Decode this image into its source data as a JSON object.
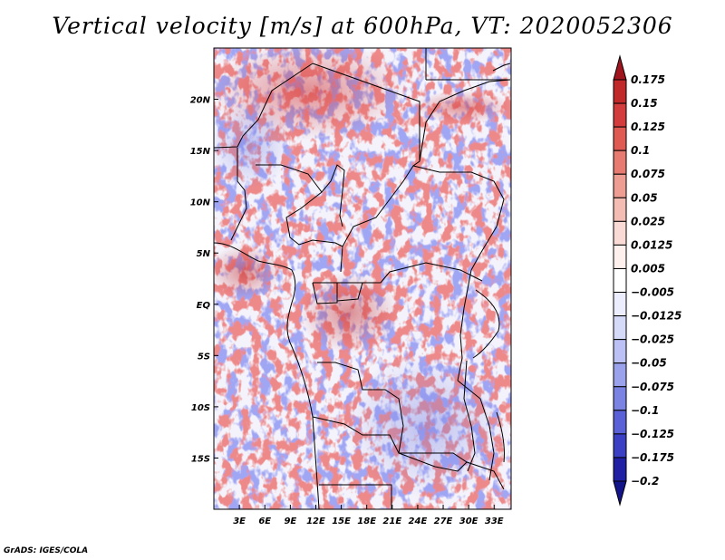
{
  "title": "Vertical velocity [m/s] at 600hPa, VT: 2020052306",
  "credit": "GrADS: IGES/COLA",
  "chart_data": {
    "type": "heatmap",
    "title": "Vertical velocity [m/s] at 600hPa, VT: 2020052306",
    "variable": "Vertical velocity",
    "units": "m/s",
    "level": "600hPa",
    "valid_time": "2020052306",
    "x_axis": {
      "ticks": [
        3,
        6,
        9,
        12,
        15,
        18,
        21,
        24,
        27,
        30,
        33
      ],
      "tick_labels": [
        "3E",
        "6E",
        "9E",
        "12E",
        "15E",
        "18E",
        "21E",
        "24E",
        "27E",
        "30E",
        "33E"
      ],
      "range": [
        0,
        35
      ]
    },
    "y_axis": {
      "ticks": [
        20,
        15,
        10,
        5,
        0,
        -5,
        -10,
        -15
      ],
      "tick_labels": [
        "20N",
        "15N",
        "10N",
        "5N",
        "EQ",
        "5S",
        "10S",
        "15S"
      ],
      "range": [
        -20,
        25
      ]
    },
    "colorbar": {
      "labels": [
        "0.175",
        "0.15",
        "0.125",
        "0.1",
        "0.075",
        "0.05",
        "0.025",
        "0.0125",
        "0.005",
        "−0.005",
        "−0.0125",
        "−0.025",
        "−0.05",
        "−0.075",
        "−0.1",
        "−0.125",
        "−0.175",
        "−0.2"
      ],
      "colors": [
        "#a0141e",
        "#c0282a",
        "#d23c3c",
        "#e05a54",
        "#e77b72",
        "#ee9d92",
        "#f4bdb4",
        "#f9dad4",
        "#fdf0ed",
        "#ffffff",
        "#eceefd",
        "#d6daf9",
        "#bbc1f4",
        "#9aa2ec",
        "#7a82e2",
        "#5a60d6",
        "#3a3fc4",
        "#2020a4",
        "#14148a"
      ]
    }
  }
}
